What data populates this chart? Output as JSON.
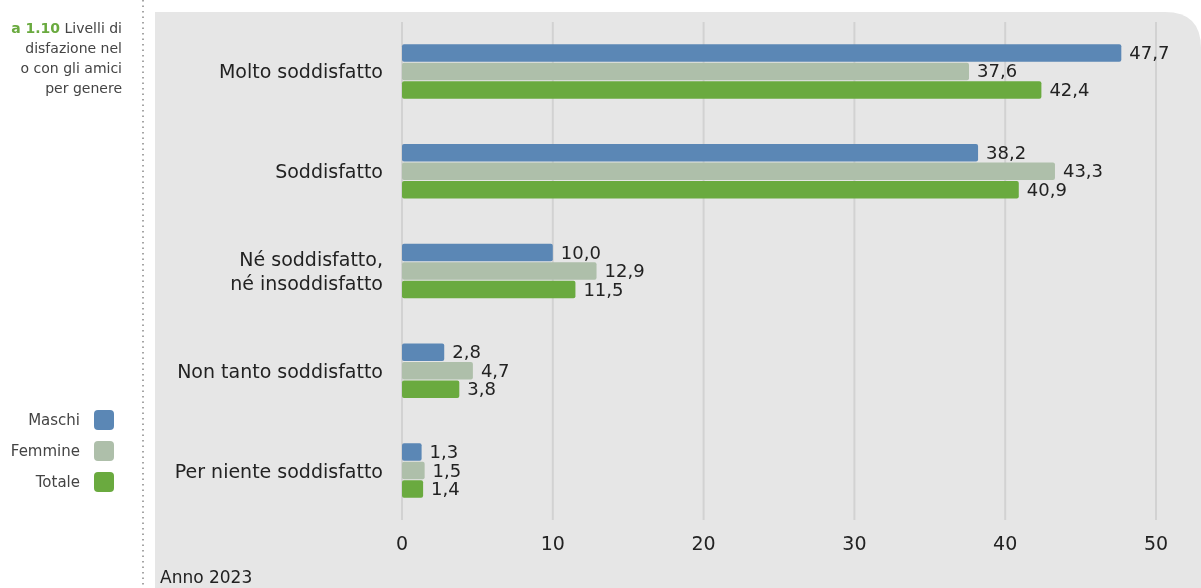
{
  "chart_data": {
    "type": "bar",
    "orientation": "horizontal",
    "title": "a 1.10 Livelli di\ndisfazione nel\no con gli amici\nper genere",
    "categories": [
      "Molto soddisfatto",
      "Soddisfatto",
      "Né soddisfatto,\nné insoddisfatto",
      "Non tanto soddisfatto",
      "Per niente soddisfatto"
    ],
    "series": [
      {
        "name": "Maschi",
        "color": "#5b87b5",
        "values": [
          47.7,
          38.2,
          10.0,
          2.8,
          1.3
        ],
        "value_labels": [
          "47,7",
          "38,2",
          "10,0",
          "2,8",
          "1,3"
        ]
      },
      {
        "name": "Femmine",
        "color": "#aebfaa",
        "values": [
          37.6,
          43.3,
          12.9,
          4.7,
          1.5
        ],
        "value_labels": [
          "37,6",
          "43,3",
          "12,9",
          "4,7",
          "1,5"
        ]
      },
      {
        "name": "Totale",
        "color": "#6aaa3f",
        "values": [
          42.4,
          40.9,
          11.5,
          3.8,
          1.4
        ],
        "value_labels": [
          "42,4",
          "40,9",
          "11,5",
          "3,8",
          "1,4"
        ]
      }
    ],
    "xlim": [
      0,
      50
    ],
    "xticks": [
      0,
      10,
      20,
      30,
      40,
      50
    ],
    "grid": "x",
    "legend": "left",
    "annotations": [
      "Anno 2023"
    ]
  }
}
